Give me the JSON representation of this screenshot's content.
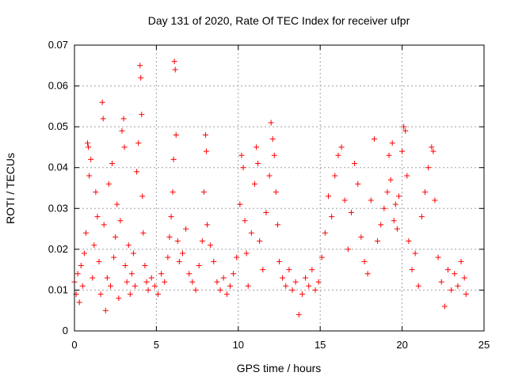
{
  "chart_data": {
    "type": "scatter",
    "title": "Day 131 of 2020, Rate Of TEC Index for receiver ufpr",
    "xlabel": "GPS time / hours",
    "ylabel": "ROTI / TECUs",
    "xlim": [
      0,
      25
    ],
    "ylim": [
      0,
      0.07
    ],
    "xticks": [
      0,
      5,
      10,
      15,
      20,
      25
    ],
    "xtick_labels": [
      "0",
      "5",
      "10",
      "15",
      "20",
      "25"
    ],
    "yticks": [
      0,
      0.01,
      0.02,
      0.03,
      0.04,
      0.05,
      0.06,
      0.07
    ],
    "ytick_labels": [
      "0",
      "0.01",
      "0.02",
      "0.03",
      "0.04",
      "0.05",
      "0.06",
      "0.07"
    ],
    "grid": true,
    "marker": "+",
    "color": "#ff0000",
    "series": [
      {
        "name": "ROTI",
        "points": [
          [
            0.0,
            0.012
          ],
          [
            0.1,
            0.009
          ],
          [
            0.2,
            0.014
          ],
          [
            0.3,
            0.007
          ],
          [
            0.4,
            0.016
          ],
          [
            0.5,
            0.011
          ],
          [
            0.6,
            0.019
          ],
          [
            0.7,
            0.024
          ],
          [
            0.8,
            0.046
          ],
          [
            0.85,
            0.045
          ],
          [
            0.9,
            0.038
          ],
          [
            1.0,
            0.042
          ],
          [
            1.1,
            0.013
          ],
          [
            1.2,
            0.021
          ],
          [
            1.3,
            0.034
          ],
          [
            1.4,
            0.028
          ],
          [
            1.5,
            0.017
          ],
          [
            1.6,
            0.009
          ],
          [
            1.7,
            0.056
          ],
          [
            1.75,
            0.052
          ],
          [
            1.8,
            0.026
          ],
          [
            1.9,
            0.005
          ],
          [
            2.0,
            0.013
          ],
          [
            2.1,
            0.036
          ],
          [
            2.2,
            0.011
          ],
          [
            2.3,
            0.041
          ],
          [
            2.4,
            0.018
          ],
          [
            2.5,
            0.023
          ],
          [
            2.6,
            0.031
          ],
          [
            2.7,
            0.008
          ],
          [
            2.8,
            0.027
          ],
          [
            2.9,
            0.049
          ],
          [
            3.0,
            0.052
          ],
          [
            3.05,
            0.045
          ],
          [
            3.1,
            0.016
          ],
          [
            3.2,
            0.012
          ],
          [
            3.3,
            0.021
          ],
          [
            3.4,
            0.009
          ],
          [
            3.5,
            0.014
          ],
          [
            3.6,
            0.019
          ],
          [
            3.7,
            0.011
          ],
          [
            3.8,
            0.039
          ],
          [
            3.9,
            0.046
          ],
          [
            4.0,
            0.065
          ],
          [
            4.05,
            0.062
          ],
          [
            4.1,
            0.053
          ],
          [
            4.15,
            0.033
          ],
          [
            4.2,
            0.024
          ],
          [
            4.3,
            0.016
          ],
          [
            4.4,
            0.012
          ],
          [
            4.5,
            0.01
          ],
          [
            4.7,
            0.013
          ],
          [
            4.9,
            0.011
          ],
          [
            5.1,
            0.009
          ],
          [
            5.3,
            0.014
          ],
          [
            5.5,
            0.012
          ],
          [
            5.7,
            0.018
          ],
          [
            5.8,
            0.023
          ],
          [
            5.9,
            0.028
          ],
          [
            6.0,
            0.034
          ],
          [
            6.05,
            0.042
          ],
          [
            6.1,
            0.066
          ],
          [
            6.15,
            0.064
          ],
          [
            6.2,
            0.048
          ],
          [
            6.3,
            0.022
          ],
          [
            6.4,
            0.017
          ],
          [
            6.6,
            0.019
          ],
          [
            6.8,
            0.025
          ],
          [
            7.0,
            0.014
          ],
          [
            7.2,
            0.012
          ],
          [
            7.4,
            0.01
          ],
          [
            7.6,
            0.016
          ],
          [
            7.8,
            0.022
          ],
          [
            7.9,
            0.034
          ],
          [
            8.0,
            0.048
          ],
          [
            8.05,
            0.044
          ],
          [
            8.1,
            0.026
          ],
          [
            8.3,
            0.021
          ],
          [
            8.5,
            0.017
          ],
          [
            8.7,
            0.012
          ],
          [
            8.9,
            0.01
          ],
          [
            9.1,
            0.013
          ],
          [
            9.3,
            0.009
          ],
          [
            9.5,
            0.011
          ],
          [
            9.7,
            0.014
          ],
          [
            9.9,
            0.018
          ],
          [
            10.1,
            0.031
          ],
          [
            10.2,
            0.043
          ],
          [
            10.3,
            0.04
          ],
          [
            10.4,
            0.027
          ],
          [
            10.5,
            0.019
          ],
          [
            10.6,
            0.011
          ],
          [
            10.8,
            0.024
          ],
          [
            11.0,
            0.036
          ],
          [
            11.1,
            0.045
          ],
          [
            11.2,
            0.041
          ],
          [
            11.3,
            0.022
          ],
          [
            11.5,
            0.015
          ],
          [
            11.7,
            0.029
          ],
          [
            11.9,
            0.038
          ],
          [
            12.0,
            0.051
          ],
          [
            12.1,
            0.047
          ],
          [
            12.2,
            0.043
          ],
          [
            12.3,
            0.034
          ],
          [
            12.4,
            0.026
          ],
          [
            12.5,
            0.017
          ],
          [
            12.7,
            0.013
          ],
          [
            12.9,
            0.011
          ],
          [
            13.1,
            0.015
          ],
          [
            13.3,
            0.01
          ],
          [
            13.5,
            0.012
          ],
          [
            13.7,
            0.004
          ],
          [
            13.9,
            0.009
          ],
          [
            14.1,
            0.013
          ],
          [
            14.3,
            0.011
          ],
          [
            14.5,
            0.015
          ],
          [
            14.7,
            0.01
          ],
          [
            14.9,
            0.012
          ],
          [
            15.1,
            0.018
          ],
          [
            15.3,
            0.024
          ],
          [
            15.5,
            0.033
          ],
          [
            15.7,
            0.028
          ],
          [
            15.9,
            0.038
          ],
          [
            16.1,
            0.043
          ],
          [
            16.3,
            0.045
          ],
          [
            16.5,
            0.032
          ],
          [
            16.7,
            0.02
          ],
          [
            16.9,
            0.029
          ],
          [
            17.1,
            0.041
          ],
          [
            17.3,
            0.036
          ],
          [
            17.5,
            0.023
          ],
          [
            17.7,
            0.017
          ],
          [
            17.9,
            0.014
          ],
          [
            18.1,
            0.032
          ],
          [
            18.3,
            0.047
          ],
          [
            18.5,
            0.022
          ],
          [
            18.7,
            0.026
          ],
          [
            18.9,
            0.03
          ],
          [
            19.1,
            0.034
          ],
          [
            19.2,
            0.043
          ],
          [
            19.3,
            0.037
          ],
          [
            19.4,
            0.046
          ],
          [
            19.5,
            0.027
          ],
          [
            19.6,
            0.031
          ],
          [
            19.7,
            0.025
          ],
          [
            19.8,
            0.033
          ],
          [
            20.0,
            0.044
          ],
          [
            20.1,
            0.05
          ],
          [
            20.2,
            0.049
          ],
          [
            20.3,
            0.038
          ],
          [
            20.4,
            0.022
          ],
          [
            20.6,
            0.015
          ],
          [
            20.8,
            0.019
          ],
          [
            21.0,
            0.011
          ],
          [
            21.2,
            0.028
          ],
          [
            21.4,
            0.034
          ],
          [
            21.6,
            0.04
          ],
          [
            21.8,
            0.045
          ],
          [
            21.9,
            0.044
          ],
          [
            22.0,
            0.032
          ],
          [
            22.2,
            0.018
          ],
          [
            22.4,
            0.012
          ],
          [
            22.6,
            0.006
          ],
          [
            22.8,
            0.015
          ],
          [
            23.0,
            0.01
          ],
          [
            23.2,
            0.014
          ],
          [
            23.4,
            0.011
          ],
          [
            23.6,
            0.017
          ],
          [
            23.8,
            0.013
          ],
          [
            23.9,
            0.009
          ]
        ]
      }
    ]
  }
}
